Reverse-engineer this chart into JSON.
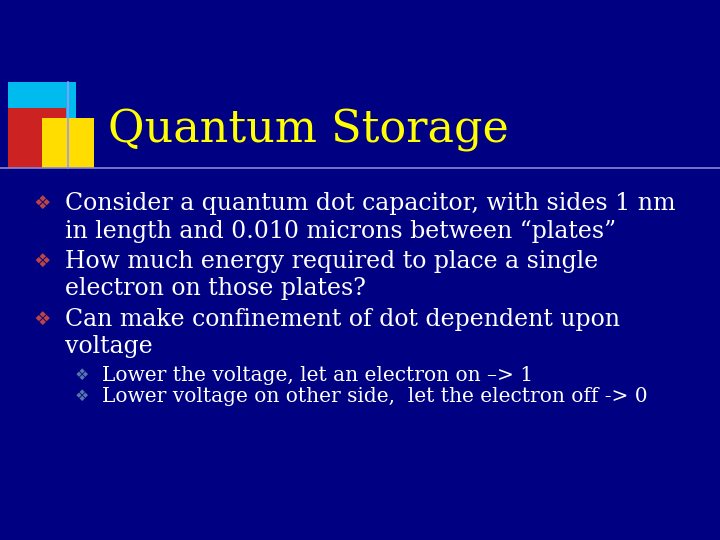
{
  "background_color": "#000082",
  "title": "Quantum Storage",
  "title_color": "#FFFF00",
  "title_fontsize": 32,
  "separator_color": "#8888CC",
  "text_color": "#FFFFFF",
  "body_fontsize": 17,
  "sub_fontsize": 14.5,
  "logo_colors": {
    "cyan": "#00BBEE",
    "red": "#CC2222",
    "yellow": "#FFDD00",
    "line_v": "#9999FF"
  },
  "bullets": [
    {
      "text": "Consider a quantum dot capacitor, with sides 1 nm\nin length and 0.010 microns between “plates”",
      "indent": 0
    },
    {
      "text": "How much energy required to place a single\nelectron on those plates?",
      "indent": 0
    },
    {
      "text": "Can make confinement of dot dependent upon\nvoltage",
      "indent": 0
    },
    {
      "text": "Lower the voltage, let an electron on –> 1",
      "indent": 1
    },
    {
      "text": "Lower voltage on other side,  let the electron off -> 0",
      "indent": 1
    }
  ]
}
